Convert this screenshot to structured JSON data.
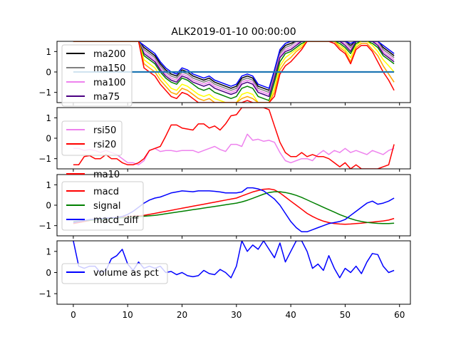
{
  "chart_data": [
    {
      "type": "line",
      "title": "ALK2019-01-10 00:00:00",
      "xlim": [
        -3,
        62
      ],
      "ylim": [
        -1.5,
        1.5
      ],
      "yticks": [
        -1,
        0,
        1
      ],
      "series": [
        {
          "name": "ma200",
          "color": "#000000",
          "values": [
            1.5,
            1.5,
            1.5,
            1.5,
            1.5,
            1.5,
            1.5,
            1.5,
            1.5,
            1.5,
            1.5,
            1.5,
            1.5,
            1.2,
            1.0,
            0.8,
            0.4,
            0.1,
            -0.1,
            -0.2,
            0.1,
            0.0,
            -0.2,
            -0.3,
            -0.4,
            -0.3,
            -0.5,
            -0.6,
            -0.7,
            -0.8,
            -0.7,
            -0.3,
            -0.2,
            -0.3,
            -0.7,
            -0.8,
            -0.9,
            0.0,
            1.0,
            1.3,
            1.4,
            1.5,
            1.5,
            1.5,
            1.5,
            1.5,
            1.5,
            1.5,
            1.5,
            1.5,
            1.5,
            1.3,
            1.5,
            1.5,
            1.5,
            1.5,
            1.5,
            1.2,
            1.0,
            0.8
          ]
        },
        {
          "name": "ma150",
          "color": "#808080",
          "values": [
            1.5,
            1.5,
            1.5,
            1.5,
            1.5,
            1.5,
            1.5,
            1.5,
            1.5,
            1.5,
            1.5,
            1.5,
            1.5,
            1.1,
            0.9,
            0.7,
            0.3,
            0.0,
            -0.2,
            -0.3,
            0.0,
            -0.1,
            -0.3,
            -0.4,
            -0.5,
            -0.4,
            -0.6,
            -0.7,
            -0.8,
            -0.9,
            -0.8,
            -0.4,
            -0.3,
            -0.4,
            -0.8,
            -0.9,
            -1.0,
            -0.1,
            0.9,
            1.2,
            1.3,
            1.5,
            1.5,
            1.5,
            1.5,
            1.5,
            1.5,
            1.5,
            1.5,
            1.5,
            1.5,
            1.2,
            1.5,
            1.5,
            1.5,
            1.5,
            1.5,
            1.1,
            0.9,
            0.7
          ]
        },
        {
          "name": "ma100",
          "color": "#ee82ee",
          "values": [
            1.5,
            1.5,
            1.5,
            1.5,
            1.5,
            1.5,
            1.5,
            1.5,
            1.5,
            1.5,
            1.5,
            1.5,
            1.5,
            1.0,
            0.8,
            0.6,
            0.2,
            -0.1,
            -0.3,
            -0.4,
            -0.1,
            -0.2,
            -0.4,
            -0.5,
            -0.6,
            -0.5,
            -0.7,
            -0.8,
            -0.9,
            -1.0,
            -0.9,
            -0.5,
            -0.4,
            -0.5,
            -0.9,
            -1.0,
            -1.1,
            -0.2,
            0.8,
            1.1,
            1.2,
            1.4,
            1.5,
            1.5,
            1.5,
            1.5,
            1.5,
            1.5,
            1.5,
            1.5,
            1.4,
            1.1,
            1.5,
            1.5,
            1.5,
            1.5,
            1.4,
            1.0,
            0.8,
            0.6
          ]
        },
        {
          "name": "ma75",
          "color": "#4b0082",
          "values": [
            1.5,
            1.5,
            1.5,
            1.5,
            1.5,
            1.5,
            1.5,
            1.5,
            1.5,
            1.5,
            1.5,
            1.5,
            1.5,
            0.9,
            0.7,
            0.5,
            0.1,
            -0.2,
            -0.4,
            -0.5,
            -0.2,
            -0.3,
            -0.5,
            -0.6,
            -0.7,
            -0.6,
            -0.8,
            -0.9,
            -1.0,
            -1.1,
            -1.0,
            -0.6,
            -0.5,
            -0.6,
            -1.0,
            -1.1,
            -1.2,
            -0.3,
            0.7,
            1.0,
            1.1,
            1.3,
            1.5,
            1.5,
            1.5,
            1.5,
            1.5,
            1.5,
            1.5,
            1.5,
            1.3,
            1.0,
            1.5,
            1.5,
            1.5,
            1.5,
            1.3,
            0.9,
            0.7,
            0.5
          ]
        },
        {
          "name": "",
          "color": "#0000ff",
          "values": [
            1.5,
            1.5,
            1.5,
            1.5,
            1.5,
            1.5,
            1.5,
            1.5,
            1.5,
            1.5,
            1.5,
            1.5,
            1.5,
            1.3,
            1.1,
            0.9,
            0.5,
            0.2,
            0.0,
            -0.1,
            0.2,
            0.1,
            -0.1,
            -0.2,
            -0.3,
            -0.2,
            -0.4,
            -0.5,
            -0.6,
            -0.7,
            -0.6,
            -0.2,
            -0.1,
            -0.2,
            -0.6,
            -0.7,
            -0.8,
            0.1,
            1.1,
            1.4,
            1.5,
            1.5,
            1.5,
            1.5,
            1.5,
            1.5,
            1.5,
            1.5,
            1.5,
            1.5,
            1.5,
            1.4,
            1.5,
            1.5,
            1.5,
            1.5,
            1.5,
            1.3,
            1.1,
            0.9
          ]
        },
        {
          "name": "",
          "color": "#008000",
          "values": [
            1.5,
            1.5,
            1.5,
            1.5,
            1.5,
            1.5,
            1.5,
            1.5,
            1.5,
            1.5,
            1.5,
            1.5,
            1.5,
            0.8,
            0.6,
            0.4,
            0.0,
            -0.3,
            -0.5,
            -0.6,
            -0.3,
            -0.4,
            -0.6,
            -0.8,
            -0.9,
            -0.8,
            -1.0,
            -1.1,
            -1.2,
            -1.3,
            -1.2,
            -0.8,
            -0.7,
            -0.8,
            -1.2,
            -1.3,
            -1.4,
            -0.5,
            0.5,
            0.9,
            1.0,
            1.2,
            1.4,
            1.5,
            1.5,
            1.5,
            1.5,
            1.5,
            1.5,
            1.4,
            1.2,
            0.9,
            1.4,
            1.5,
            1.5,
            1.4,
            1.2,
            0.8,
            0.6,
            0.4
          ]
        },
        {
          "name": "",
          "color": "#ffff00",
          "values": [
            1.5,
            1.5,
            1.5,
            1.5,
            1.5,
            1.5,
            1.5,
            1.5,
            1.5,
            1.5,
            1.5,
            1.5,
            1.5,
            0.6,
            0.4,
            0.2,
            -0.2,
            -0.5,
            -0.8,
            -0.9,
            -0.6,
            -0.7,
            -0.9,
            -1.1,
            -1.2,
            -1.1,
            -1.3,
            -1.4,
            -1.5,
            -1.5,
            -1.5,
            -1.1,
            -1.0,
            -1.1,
            -1.5,
            -1.5,
            -1.5,
            -0.8,
            0.3,
            0.7,
            0.9,
            1.1,
            1.3,
            1.5,
            1.5,
            1.5,
            1.5,
            1.5,
            1.5,
            1.3,
            1.1,
            0.7,
            1.3,
            1.5,
            1.5,
            1.3,
            1.0,
            0.6,
            0.3,
            0.0
          ]
        },
        {
          "name": "",
          "color": "#ffa500",
          "values": [
            1.5,
            1.5,
            1.5,
            1.5,
            1.5,
            1.5,
            1.5,
            1.5,
            1.5,
            1.5,
            1.5,
            1.5,
            1.5,
            0.4,
            0.2,
            0.0,
            -0.4,
            -0.7,
            -1.0,
            -1.1,
            -0.8,
            -0.9,
            -1.1,
            -1.3,
            -1.4,
            -1.3,
            -1.5,
            -1.5,
            -1.5,
            -1.5,
            -1.5,
            -1.3,
            -1.2,
            -1.3,
            -1.5,
            -1.5,
            -1.5,
            -1.0,
            0.1,
            0.5,
            0.7,
            1.0,
            1.2,
            1.5,
            1.5,
            1.5,
            1.5,
            1.5,
            1.5,
            1.2,
            1.0,
            0.5,
            1.2,
            1.4,
            1.4,
            1.1,
            0.8,
            0.3,
            -0.1,
            -0.5
          ]
        },
        {
          "name": "",
          "color": "#ff0000",
          "values": [
            1.5,
            1.5,
            1.5,
            1.5,
            1.5,
            1.5,
            1.5,
            1.5,
            1.5,
            1.5,
            1.5,
            1.5,
            1.5,
            0.2,
            0.0,
            -0.2,
            -0.6,
            -0.9,
            -1.2,
            -1.3,
            -1.0,
            -1.1,
            -1.3,
            -1.5,
            -1.5,
            -1.5,
            -1.5,
            -1.5,
            -1.5,
            -1.5,
            -1.5,
            -1.5,
            -1.4,
            -1.5,
            -1.5,
            -1.5,
            -1.5,
            -1.2,
            -0.1,
            0.3,
            0.5,
            0.8,
            1.1,
            1.5,
            1.5,
            1.5,
            1.5,
            1.5,
            1.4,
            1.1,
            0.9,
            0.4,
            1.1,
            1.3,
            1.3,
            1.0,
            0.5,
            0.0,
            -0.4,
            -0.9
          ]
        },
        {
          "name": "",
          "color": "#1f77b4",
          "values": [
            0,
            0,
            0,
            0,
            0,
            0,
            0,
            0,
            0,
            0,
            0,
            0,
            0,
            0,
            0,
            0,
            0,
            0,
            0,
            0,
            0,
            0,
            0,
            0,
            0,
            0,
            0,
            0,
            0,
            0,
            0,
            0,
            0,
            0,
            0,
            0,
            0,
            0,
            0,
            0,
            0,
            0,
            0,
            0,
            0,
            0,
            0,
            0,
            0,
            0,
            0,
            0,
            0,
            0,
            0,
            0,
            0,
            0,
            0,
            0
          ],
          "x_from": 0
        }
      ]
    },
    {
      "type": "line",
      "xlim": [
        -3,
        62
      ],
      "ylim": [
        -1.5,
        1.5
      ],
      "yticks": [
        -1,
        0,
        1
      ],
      "series": [
        {
          "name": "rsi50",
          "color": "#ee82ee",
          "values": [
            -0.5,
            -0.5,
            -0.6,
            -0.55,
            -0.6,
            -0.7,
            -0.6,
            -0.7,
            -0.8,
            -1.0,
            -1.2,
            -1.2,
            -1.3,
            -1.1,
            -0.6,
            -0.5,
            -0.65,
            -0.6,
            -0.6,
            -0.65,
            -0.6,
            -0.6,
            -0.6,
            -0.7,
            -0.6,
            -0.5,
            -0.4,
            -0.55,
            -0.65,
            -0.3,
            -0.3,
            -0.4,
            0.2,
            -0.1,
            -0.05,
            -0.15,
            -0.1,
            -0.2,
            -0.7,
            -1.1,
            -1.2,
            -1.1,
            -1.0,
            -1.0,
            -1.1,
            -0.8,
            -0.6,
            -0.8,
            -0.6,
            -0.7,
            -0.5,
            -0.7,
            -0.6,
            -0.7,
            -0.8,
            -0.6,
            -0.7,
            -0.8,
            -0.6,
            -0.5
          ]
        },
        {
          "name": "rsi20",
          "color": "#ff0000",
          "values": [
            -1.3,
            -1.3,
            -0.9,
            -0.85,
            -1.0,
            -1.0,
            -0.8,
            -1.0,
            -1.0,
            -1.2,
            -1.3,
            -1.3,
            -1.2,
            -1.0,
            -0.6,
            -0.5,
            -0.4,
            0.1,
            0.65,
            0.65,
            0.5,
            0.45,
            0.4,
            0.7,
            0.7,
            0.5,
            0.6,
            0.4,
            0.7,
            1.1,
            1.15,
            1.5,
            1.5,
            1.5,
            1.5,
            1.5,
            1.4,
            0.6,
            -0.2,
            -0.7,
            -0.9,
            -0.9,
            -0.7,
            -0.9,
            -0.8,
            -0.9,
            -0.9,
            -1.0,
            -1.2,
            -1.4,
            -1.2,
            -1.5,
            -1.3,
            -1.5,
            -1.5,
            -1.5,
            -1.5,
            -1.4,
            -1.3,
            -0.3
          ]
        }
      ]
    },
    {
      "type": "line",
      "xlim": [
        -3,
        62
      ],
      "ylim": [
        -1.5,
        1.5
      ],
      "yticks": [
        -1,
        0,
        1
      ],
      "series": [
        {
          "name": "ma10",
          "color": "#ff0000",
          "values": [],
          "legend_partial": true
        },
        {
          "name": "macd",
          "color": "#ff0000",
          "values": [
            -0.9,
            -0.85,
            -0.8,
            -0.75,
            -0.7,
            -0.68,
            -0.66,
            -0.64,
            -0.6,
            -0.58,
            -0.56,
            -0.54,
            -0.52,
            -0.5,
            -0.45,
            -0.4,
            -0.35,
            -0.3,
            -0.25,
            -0.2,
            -0.15,
            -0.1,
            -0.05,
            0.0,
            0.05,
            0.1,
            0.15,
            0.2,
            0.25,
            0.3,
            0.35,
            0.45,
            0.55,
            0.65,
            0.72,
            0.78,
            0.8,
            0.75,
            0.6,
            0.4,
            0.2,
            0.0,
            -0.2,
            -0.4,
            -0.55,
            -0.68,
            -0.78,
            -0.85,
            -0.9,
            -0.92,
            -0.93,
            -0.92,
            -0.9,
            -0.88,
            -0.85,
            -0.83,
            -0.8,
            -0.77,
            -0.73,
            -0.65
          ]
        },
        {
          "name": "signal",
          "color": "#008000",
          "values": [
            -0.8,
            -0.78,
            -0.76,
            -0.74,
            -0.72,
            -0.7,
            -0.68,
            -0.66,
            -0.64,
            -0.62,
            -0.6,
            -0.58,
            -0.56,
            -0.54,
            -0.52,
            -0.5,
            -0.46,
            -0.42,
            -0.38,
            -0.34,
            -0.3,
            -0.26,
            -0.22,
            -0.18,
            -0.14,
            -0.1,
            -0.06,
            -0.02,
            0.02,
            0.06,
            0.1,
            0.16,
            0.24,
            0.34,
            0.44,
            0.54,
            0.62,
            0.66,
            0.66,
            0.62,
            0.56,
            0.48,
            0.38,
            0.26,
            0.14,
            0.02,
            -0.1,
            -0.22,
            -0.34,
            -0.46,
            -0.56,
            -0.66,
            -0.74,
            -0.8,
            -0.84,
            -0.87,
            -0.89,
            -0.9,
            -0.9,
            -0.88
          ]
        },
        {
          "name": "macd_diff",
          "color": "#0000ff",
          "values": [
            -0.85,
            -0.8,
            -0.75,
            -0.7,
            -0.68,
            -0.66,
            -0.64,
            -0.62,
            -0.6,
            -0.55,
            -0.45,
            -0.3,
            -0.1,
            0.1,
            0.25,
            0.35,
            0.4,
            0.5,
            0.6,
            0.65,
            0.7,
            0.68,
            0.66,
            0.7,
            0.7,
            0.7,
            0.68,
            0.65,
            0.6,
            0.6,
            0.6,
            0.65,
            0.85,
            0.85,
            0.8,
            0.7,
            0.5,
            0.3,
            0.0,
            -0.4,
            -0.8,
            -1.1,
            -1.3,
            -1.3,
            -1.2,
            -1.1,
            -1.0,
            -0.9,
            -0.85,
            -0.8,
            -0.7,
            -0.5,
            -0.3,
            -0.1,
            0.1,
            0.2,
            0.05,
            0.1,
            0.2,
            0.35
          ]
        }
      ]
    },
    {
      "type": "line",
      "xlim": [
        -3,
        62
      ],
      "ylim": [
        -1.5,
        1.5
      ],
      "yticks": [
        -1,
        0,
        1
      ],
      "xticks": [
        0,
        10,
        20,
        30,
        40,
        50,
        60
      ],
      "series": [
        {
          "name": "volume as pct",
          "color": "#0000ff",
          "values": [
            1.5,
            0.3,
            0.2,
            0.3,
            0.3,
            0.0,
            0.1,
            0.65,
            0.8,
            1.1,
            0.4,
            0.1,
            0.5,
            0.2,
            0.3,
            0.2,
            0.3,
            0.0,
            0.05,
            -0.1,
            0.0,
            -0.15,
            -0.2,
            -0.15,
            0.1,
            -0.05,
            -0.1,
            0.15,
            0.0,
            -0.25,
            0.3,
            1.5,
            1.0,
            1.3,
            1.1,
            1.5,
            1.1,
            0.7,
            1.4,
            0.5,
            1.0,
            1.5,
            1.5,
            1.0,
            0.2,
            0.4,
            0.1,
            0.8,
            0.2,
            -0.25,
            0.2,
            0.0,
            0.3,
            -0.05,
            0.5,
            0.9,
            0.85,
            0.3,
            0.0,
            0.1
          ]
        }
      ]
    }
  ]
}
